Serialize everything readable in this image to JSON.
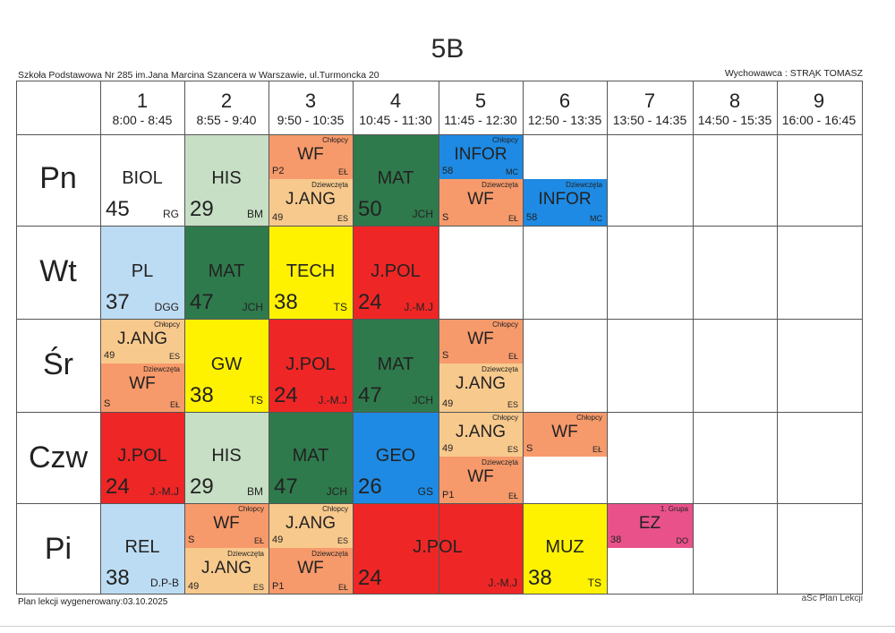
{
  "title": "5B",
  "school": "Szkoła Podstawowa Nr 285 im.Jana Marcina Szancera w Warszawie, ul.Turmoncka 20",
  "teacher": "Wychowawca : STRĄK TOMASZ",
  "footer_left": "Plan lekcji wygenerowany:03.10.2025",
  "footer_right": "aSc Plan Lekcji",
  "periods": [
    {
      "n": "1",
      "t": "8:00 - 8:45"
    },
    {
      "n": "2",
      "t": "8:55 - 9:40"
    },
    {
      "n": "3",
      "t": "9:50 - 10:35"
    },
    {
      "n": "4",
      "t": "10:45 - 11:30"
    },
    {
      "n": "5",
      "t": "11:45 - 12:30"
    },
    {
      "n": "6",
      "t": "12:50 - 13:35"
    },
    {
      "n": "7",
      "t": "13:50 - 14:35"
    },
    {
      "n": "8",
      "t": "14:50 - 15:35"
    },
    {
      "n": "9",
      "t": "16:00 - 16:45"
    }
  ],
  "days": [
    "Pn",
    "Wt",
    "Śr",
    "Czw",
    "Pi"
  ],
  "colors": {
    "biol": "#ffffff",
    "his": "#c7dfc4",
    "wf": "#f79a6b",
    "jang": "#f8c98d",
    "mat": "#2f7a4c",
    "infor": "#1e8ae3",
    "pl": "#bcdcf3",
    "tech": "#fff200",
    "jpol": "#ef2626",
    "gw": "#fff200",
    "geo": "#1e8ae3",
    "rel": "#bcdcf3",
    "muz": "#fff200",
    "ez": "#e8518a"
  },
  "lessons": {
    "pn1": {
      "subj": "BIOL",
      "num": "45",
      "tch": "RG"
    },
    "pn2": {
      "subj": "HIS",
      "num": "29",
      "tch": "BM"
    },
    "pn3a": {
      "subj": "WF",
      "num": "P2",
      "tch": "EŁ",
      "grp": "Chłopcy"
    },
    "pn3b": {
      "subj": "J.ANG",
      "num": "49",
      "tch": "ES",
      "grp": "Dziewczęta"
    },
    "pn4": {
      "subj": "MAT",
      "num": "50",
      "tch": "JCH"
    },
    "pn5a": {
      "subj": "INFOR",
      "num": "58",
      "tch": "MC",
      "grp": "Chłopcy"
    },
    "pn5b": {
      "subj": "WF",
      "num": "S",
      "tch": "EŁ",
      "grp": "Dziewczęta"
    },
    "pn6": {
      "subj": "INFOR",
      "num": "58",
      "tch": "MC",
      "grp": "Dziewczęta"
    },
    "wt1": {
      "subj": "PL",
      "num": "37",
      "tch": "DGG"
    },
    "wt2": {
      "subj": "MAT",
      "num": "47",
      "tch": "JCH"
    },
    "wt3": {
      "subj": "TECH",
      "num": "38",
      "tch": "TS"
    },
    "wt4": {
      "subj": "J.POL",
      "num": "24",
      "tch": "J.-M.J"
    },
    "sr1a": {
      "subj": "J.ANG",
      "num": "49",
      "tch": "ES",
      "grp": "Chłopcy"
    },
    "sr1b": {
      "subj": "WF",
      "num": "S",
      "tch": "EŁ",
      "grp": "Dziewczęta"
    },
    "sr2": {
      "subj": "GW",
      "num": "38",
      "tch": "TS"
    },
    "sr3": {
      "subj": "J.POL",
      "num": "24",
      "tch": "J.-M.J"
    },
    "sr4": {
      "subj": "MAT",
      "num": "47",
      "tch": "JCH"
    },
    "sr5a": {
      "subj": "WF",
      "num": "S",
      "tch": "EŁ",
      "grp": "Chłopcy"
    },
    "sr5b": {
      "subj": "J.ANG",
      "num": "49",
      "tch": "ES",
      "grp": "Dziewczęta"
    },
    "cz1": {
      "subj": "J.POL",
      "num": "24",
      "tch": "J.-M.J"
    },
    "cz2": {
      "subj": "HIS",
      "num": "29",
      "tch": "BM"
    },
    "cz3": {
      "subj": "MAT",
      "num": "47",
      "tch": "JCH"
    },
    "cz4": {
      "subj": "GEO",
      "num": "26",
      "tch": "GS"
    },
    "cz5a": {
      "subj": "J.ANG",
      "num": "49",
      "tch": "ES",
      "grp": "Chłopcy"
    },
    "cz5b": {
      "subj": "WF",
      "num": "P1",
      "tch": "EŁ",
      "grp": "Dziewczęta"
    },
    "cz6": {
      "subj": "WF",
      "num": "S",
      "tch": "EŁ",
      "grp": "Chłopcy"
    },
    "pi1": {
      "subj": "REL",
      "num": "38",
      "tch": "D.P-B"
    },
    "pi2a": {
      "subj": "WF",
      "num": "S",
      "tch": "EŁ",
      "grp": "Chłopcy"
    },
    "pi2b": {
      "subj": "J.ANG",
      "num": "49",
      "tch": "ES",
      "grp": "Dziewczęta"
    },
    "pi3a": {
      "subj": "J.ANG",
      "num": "49",
      "tch": "ES",
      "grp": "Chłopcy"
    },
    "pi3b": {
      "subj": "WF",
      "num": "P1",
      "tch": "EŁ",
      "grp": "Dziewczęta"
    },
    "pi45": {
      "subj": "J.POL",
      "num": "24",
      "tch": "J.-M.J"
    },
    "pi6": {
      "subj": "MUZ",
      "num": "38",
      "tch": "TS"
    },
    "pi7": {
      "subj": "EZ",
      "num": "38",
      "tch": "DO",
      "grp": "1. Grupa"
    }
  }
}
